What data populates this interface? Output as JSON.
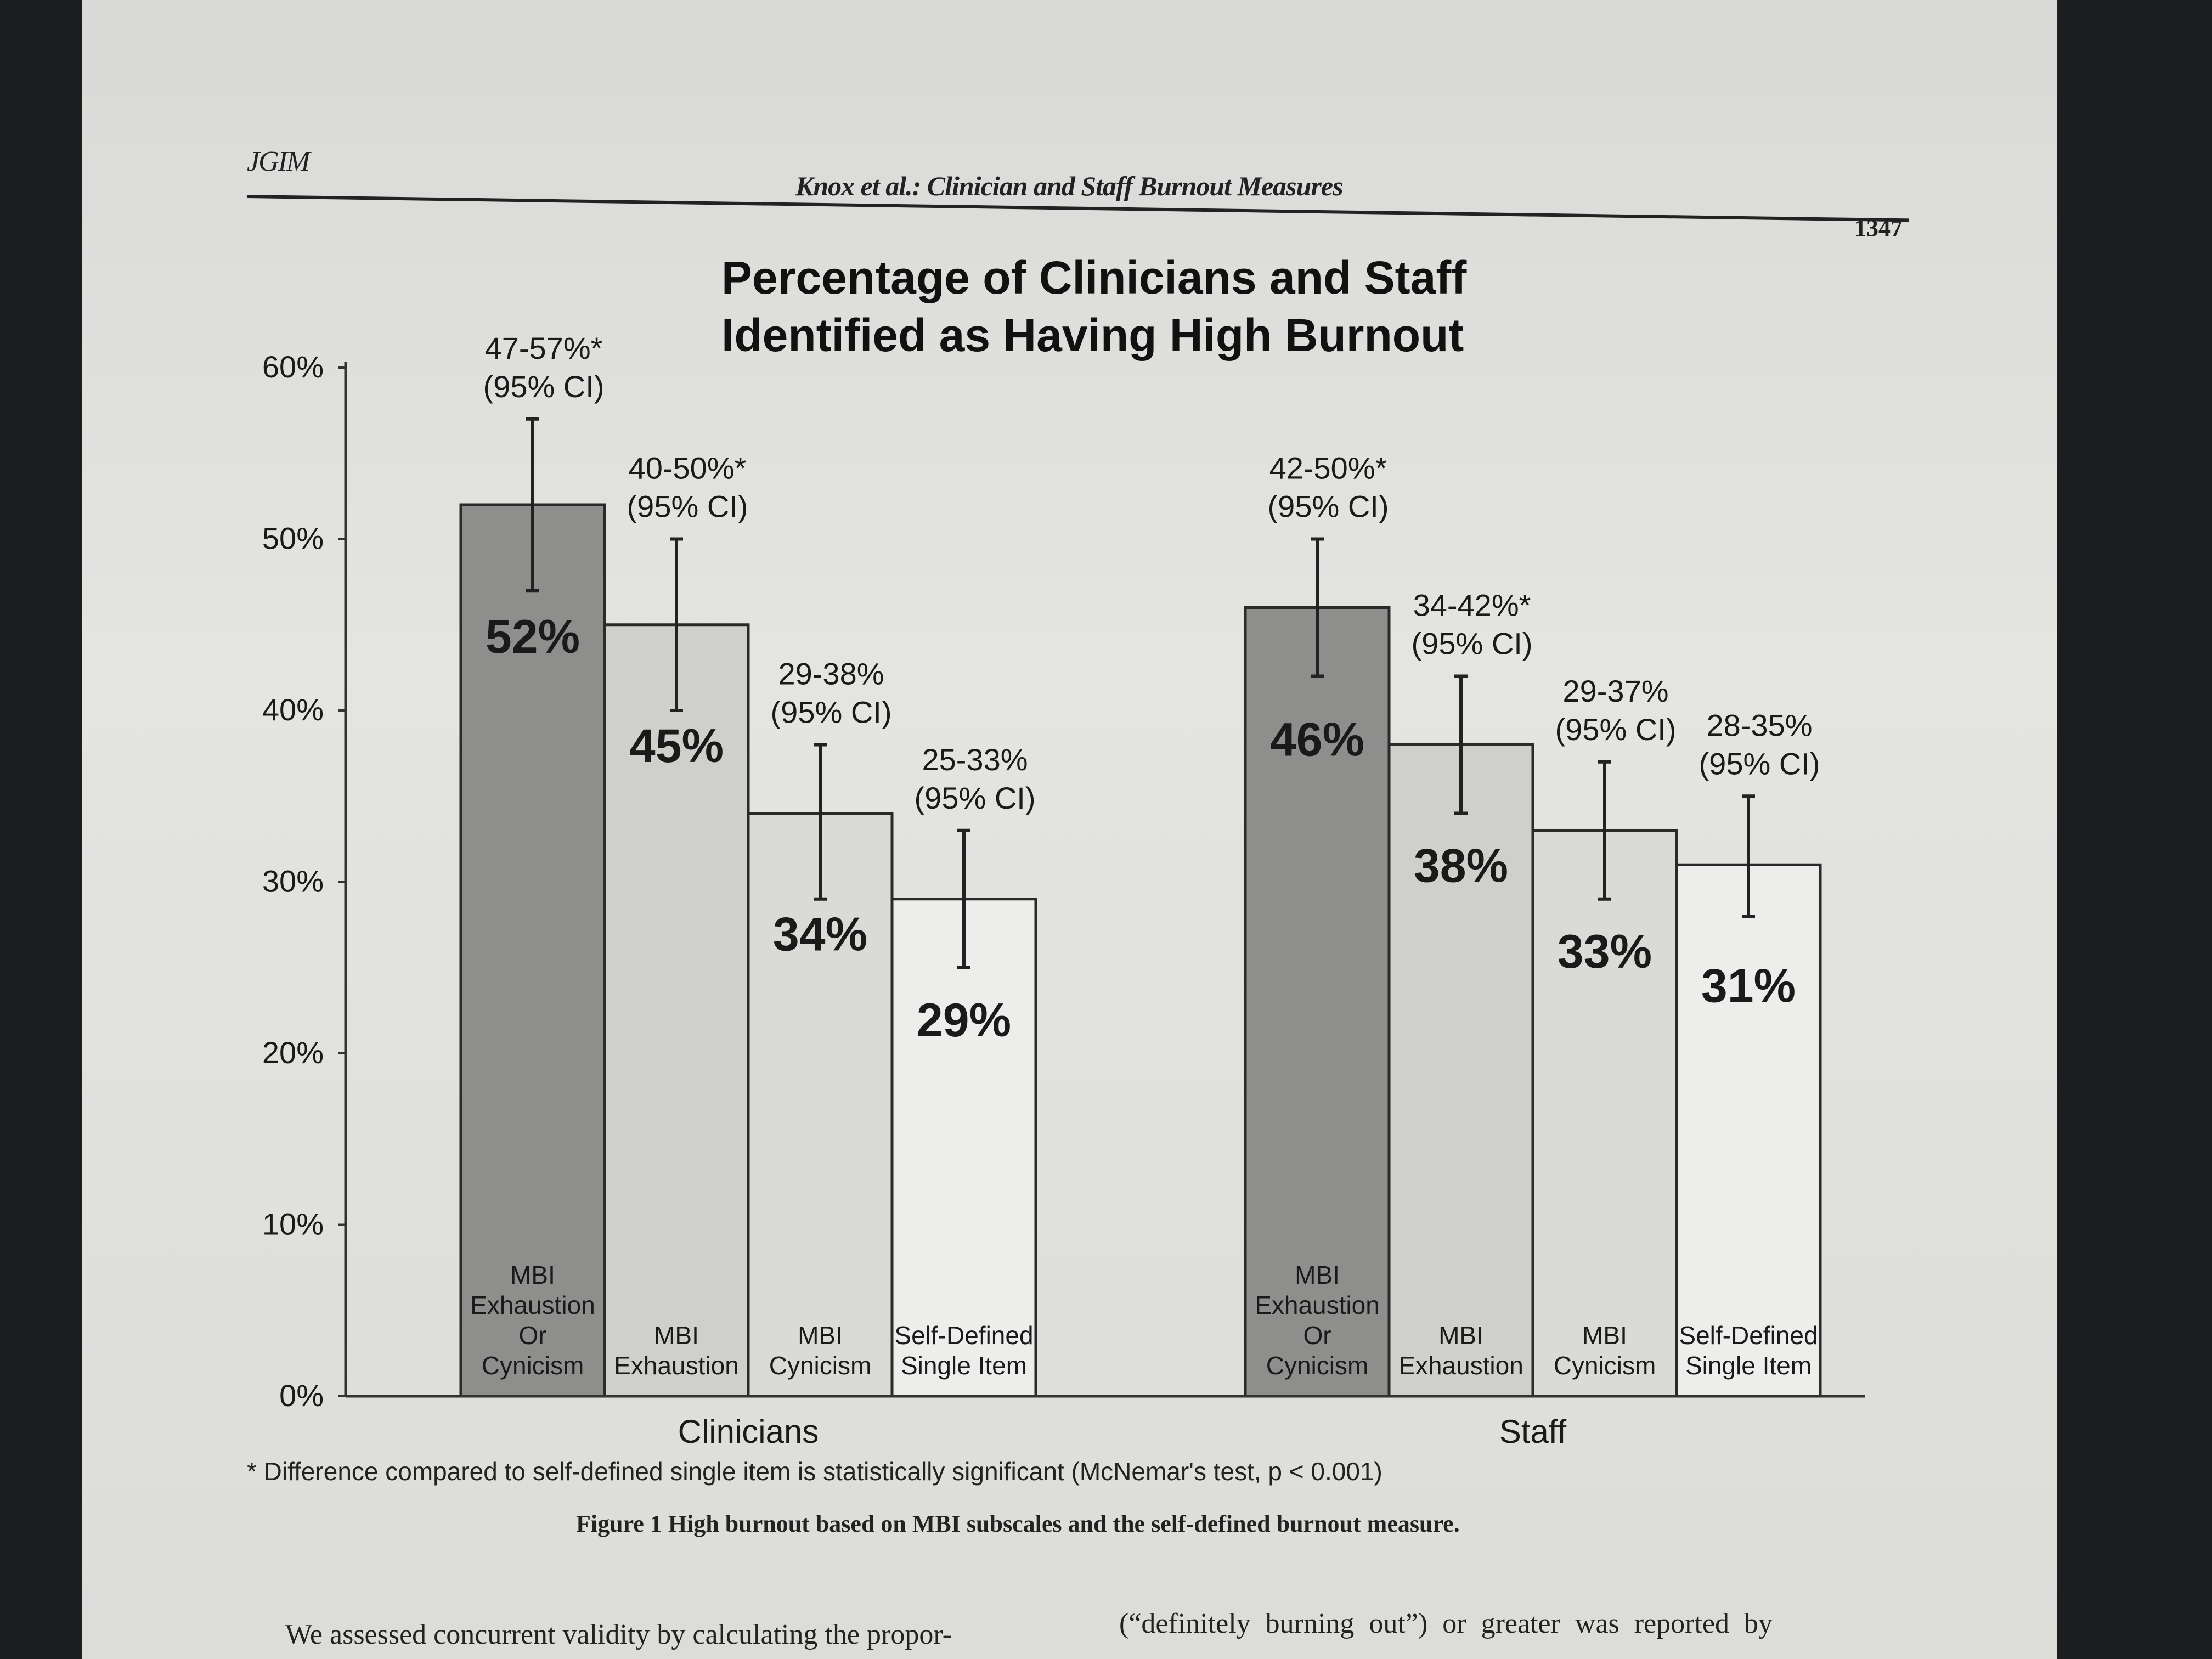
{
  "header": {
    "journal": "JGIM",
    "running_title": "Knox et al.: Clinician and Staff Burnout Measures",
    "page_number": "1347"
  },
  "chart_data": {
    "type": "bar",
    "title_line1": "Percentage of Clinicians and Staff",
    "title_line2": "Identified as Having High Burnout",
    "ylim": [
      0,
      60
    ],
    "y_ticks": [
      "0%",
      "10%",
      "20%",
      "30%",
      "40%",
      "50%",
      "60%"
    ],
    "y_tick_values": [
      0,
      10,
      20,
      30,
      40,
      50,
      60
    ],
    "groups": [
      {
        "name": "Clinicians",
        "bars": [
          {
            "label": [
              "MBI",
              "Exhaustion",
              "Or",
              "Cynicism"
            ],
            "value": 52,
            "value_label": "52%",
            "ci": [
              47,
              57
            ],
            "ci_label": [
              "47-57%*",
              "(95% CI)"
            ],
            "color": "#8e8e8c"
          },
          {
            "label": [
              "MBI",
              "Exhaustion"
            ],
            "value": 45,
            "value_label": "45%",
            "ci": [
              40,
              50
            ],
            "ci_label": [
              "40-50%*",
              "(95% CI)"
            ],
            "color": "#cfcfcc"
          },
          {
            "label": [
              "MBI",
              "Cynicism"
            ],
            "value": 34,
            "value_label": "34%",
            "ci": [
              29,
              38
            ],
            "ci_label": [
              "29-38%",
              "(95% CI)"
            ],
            "color": "#dadad7"
          },
          {
            "label": [
              "Self-Defined",
              "Single Item"
            ],
            "value": 29,
            "value_label": "29%",
            "ci": [
              25,
              33
            ],
            "ci_label": [
              "25-33%",
              "(95% CI)"
            ],
            "color": "#ededeb"
          }
        ]
      },
      {
        "name": "Staff",
        "bars": [
          {
            "label": [
              "MBI",
              "Exhaustion",
              "Or",
              "Cynicism"
            ],
            "value": 46,
            "value_label": "46%",
            "ci": [
              42,
              50
            ],
            "ci_label": [
              "42-50%*",
              "(95% CI)"
            ],
            "color": "#8e8e8c"
          },
          {
            "label": [
              "MBI",
              "Exhaustion"
            ],
            "value": 38,
            "value_label": "38%",
            "ci": [
              34,
              42
            ],
            "ci_label": [
              "34-42%*",
              "(95% CI)"
            ],
            "color": "#cfcfcc"
          },
          {
            "label": [
              "MBI",
              "Cynicism"
            ],
            "value": 33,
            "value_label": "33%",
            "ci": [
              29,
              37
            ],
            "ci_label": [
              "29-37%",
              "(95% CI)"
            ],
            "color": "#dadad7"
          },
          {
            "label": [
              "Self-Defined",
              "Single Item"
            ],
            "value": 31,
            "value_label": "31%",
            "ci": [
              28,
              35
            ],
            "ci_label": [
              "28-35%",
              "(95% CI)"
            ],
            "color": "#ededeb"
          }
        ]
      }
    ],
    "xlabel": "",
    "ylabel": ""
  },
  "footnote": "* Difference compared to self-defined single item is statistically significant (McNemar's test, p < 0.001)",
  "figure_caption": "Figure 1 High burnout based on MBI subscales and the self-defined burnout measure.",
  "body_text": {
    "left_line": "We assessed concurrent validity by calculating the propor-",
    "right_line": "(“definitely burning out”) or greater was reported by"
  }
}
